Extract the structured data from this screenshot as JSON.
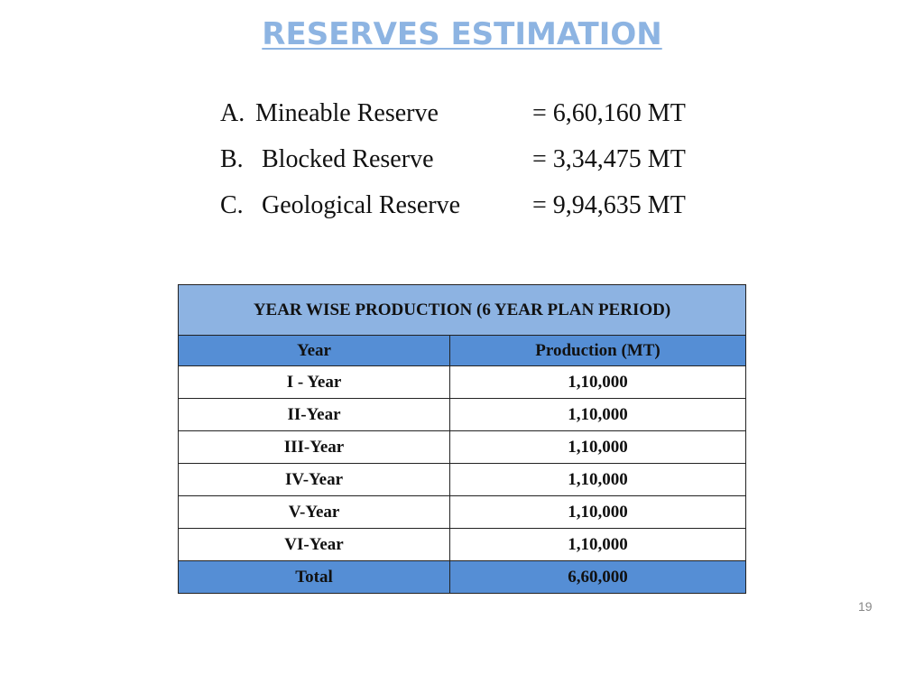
{
  "title": "RESERVES ESTIMATION",
  "reserves": [
    {
      "marker": "A.",
      "label": "Mineable Reserve",
      "value": "= 6,60,160 MT"
    },
    {
      "marker": "B.",
      "label": "Blocked Reserve",
      "value": "= 3,34,475 MT"
    },
    {
      "marker": "C.",
      "label": "Geological Reserve",
      "value": "= 9,94,635 MT"
    }
  ],
  "table": {
    "caption": "YEAR WISE PRODUCTION (6 YEAR PLAN PERIOD)",
    "header": [
      "Year",
      "Production (MT)"
    ],
    "rows": [
      [
        "I - Year",
        "1,10,000"
      ],
      [
        "II-Year",
        "1,10,000"
      ],
      [
        "III-Year",
        "1,10,000"
      ],
      [
        "IV-Year",
        "1,10,000"
      ],
      [
        "V-Year",
        "1,10,000"
      ],
      [
        "VI-Year",
        "1,10,000"
      ]
    ],
    "total": [
      "Total",
      "6,60,000"
    ]
  },
  "page_number": "19"
}
